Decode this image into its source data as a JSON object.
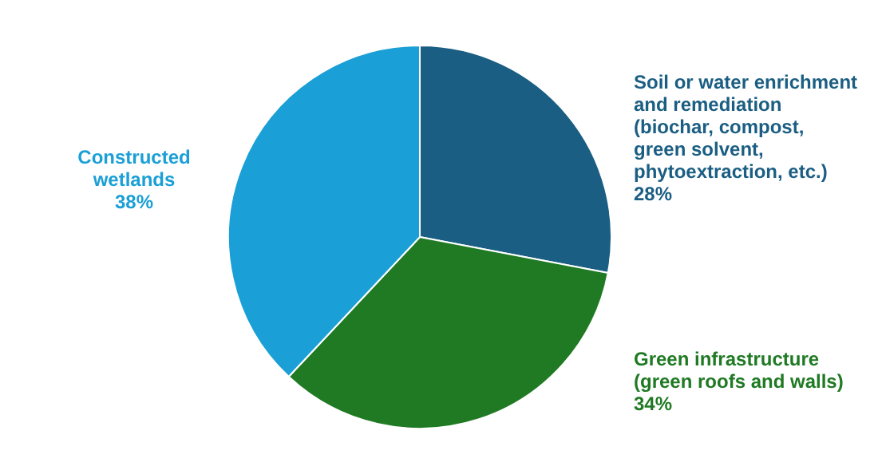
{
  "chart_data": {
    "type": "pie",
    "categories": [
      "Soil or water enrichment and remediation (biochar, compost, green solvent, phytoextraction, etc.)",
      "Green infrastructure (green roofs and walls)",
      "Constructed wetlands"
    ],
    "values": [
      28,
      34,
      38
    ],
    "colors": [
      "#1b5e83",
      "#1f7a23",
      "#1a9fd6"
    ],
    "value_labels": [
      "28%",
      "34%",
      "38%"
    ],
    "legend": false
  }
}
